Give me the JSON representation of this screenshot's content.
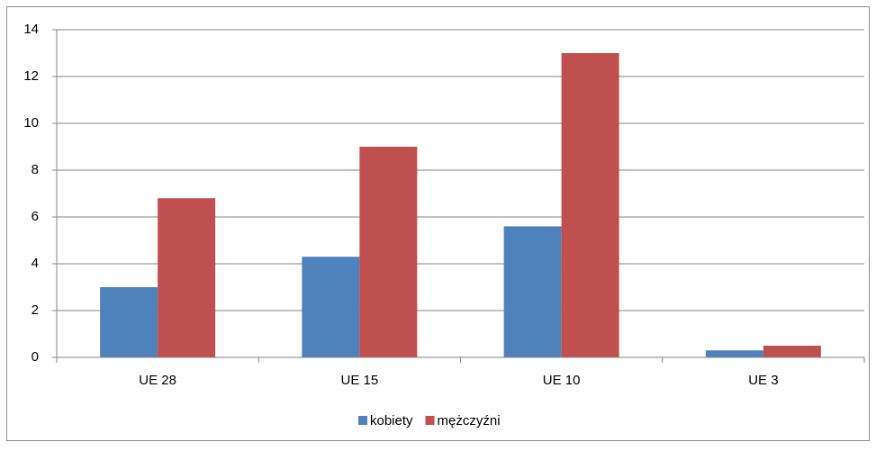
{
  "chart_data": {
    "type": "bar",
    "categories": [
      "UE 28",
      "UE 15",
      "UE 10",
      "UE 3"
    ],
    "series": [
      {
        "name": "kobiety",
        "color": "#4f81bd",
        "values": [
          3.0,
          4.3,
          5.6,
          0.3
        ]
      },
      {
        "name": "mężczyźni",
        "color": "#c0504d",
        "values": [
          6.8,
          9.0,
          13.0,
          0.5
        ]
      }
    ],
    "ylim": [
      0,
      14
    ],
    "yticks": [
      0,
      2,
      4,
      6,
      8,
      10,
      12,
      14
    ],
    "grid": true,
    "legend": "bottom"
  }
}
